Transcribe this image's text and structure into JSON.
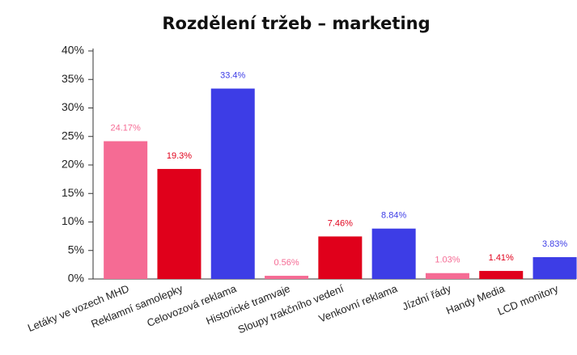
{
  "chart_data": {
    "type": "bar",
    "title": "Rozdělení tržeb – marketing",
    "categories": [
      "Letáky ve vozech MHD",
      "Reklamní samolepky",
      "Celovozová reklama",
      "Historické tramvaje",
      "Sloupy trakčního vedení",
      "Venkovní reklama",
      "Jízdní řády",
      "Handy Media",
      "LCD monitory"
    ],
    "values": [
      24.17,
      19.3,
      33.4,
      0.56,
      7.46,
      8.84,
      1.03,
      1.41,
      3.83
    ],
    "value_labels": [
      "24.17%",
      "19.3%",
      "33.4%",
      "0.56%",
      "7.46%",
      "8.84%",
      "1.03%",
      "1.41%",
      "3.83%"
    ],
    "colors": [
      "#f56b94",
      "#e0001b",
      "#3d3de6",
      "#f56b94",
      "#e0001b",
      "#3d3de6",
      "#f56b94",
      "#e0001b",
      "#3d3de6"
    ],
    "ylim": [
      0,
      40
    ],
    "yticks": [
      {
        "value": 0,
        "label": "0%"
      },
      {
        "value": 5,
        "label": "5%"
      },
      {
        "value": 10,
        "label": "10%"
      },
      {
        "value": 15,
        "label": "15%"
      },
      {
        "value": 20,
        "label": "20%"
      },
      {
        "value": 25,
        "label": "25%"
      },
      {
        "value": 30,
        "label": "30%"
      },
      {
        "value": 35,
        "label": "35%"
      },
      {
        "value": 40,
        "label": "40%"
      }
    ],
    "grid": false
  }
}
